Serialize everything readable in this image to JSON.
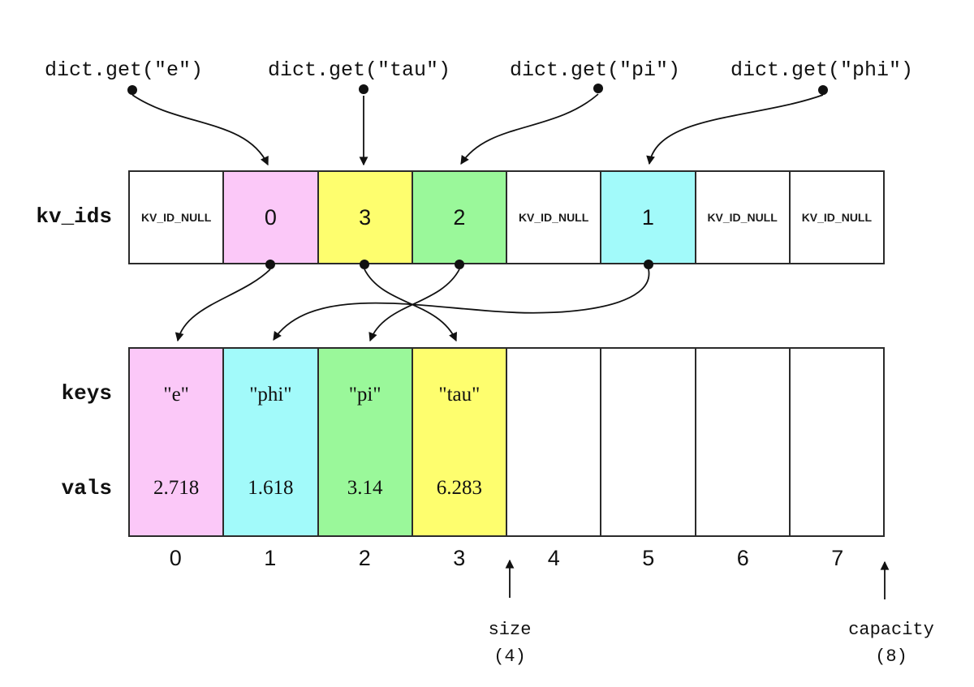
{
  "palette": {
    "pink": "#FBC8F8",
    "yellow": "#FEFE6E",
    "green": "#9AF89A",
    "cyan": "#A2FAFA",
    "white": "#FFFFFF"
  },
  "line_color": "#111111",
  "calls": [
    {
      "label": "dict.get(\"e\")"
    },
    {
      "label": "dict.get(\"tau\")"
    },
    {
      "label": "dict.get(\"pi\")"
    },
    {
      "label": "dict.get(\"phi\")"
    }
  ],
  "kv_ids": {
    "label": "kv_ids",
    "cells": [
      {
        "text": "KV_ID_NULL",
        "color": "white",
        "type": "null"
      },
      {
        "text": "0",
        "color": "pink",
        "type": "id"
      },
      {
        "text": "3",
        "color": "yellow",
        "type": "id"
      },
      {
        "text": "2",
        "color": "green",
        "type": "id"
      },
      {
        "text": "KV_ID_NULL",
        "color": "white",
        "type": "null"
      },
      {
        "text": "1",
        "color": "cyan",
        "type": "id"
      },
      {
        "text": "KV_ID_NULL",
        "color": "white",
        "type": "null"
      },
      {
        "text": "KV_ID_NULL",
        "color": "white",
        "type": "null"
      }
    ]
  },
  "keys": {
    "label": "keys",
    "cells": [
      {
        "text": "\"e\"",
        "color": "pink"
      },
      {
        "text": "\"phi\"",
        "color": "cyan"
      },
      {
        "text": "\"pi\"",
        "color": "green"
      },
      {
        "text": "\"tau\"",
        "color": "yellow"
      },
      {
        "text": "",
        "color": "white"
      },
      {
        "text": "",
        "color": "white"
      },
      {
        "text": "",
        "color": "white"
      },
      {
        "text": "",
        "color": "white"
      }
    ]
  },
  "vals": {
    "label": "vals",
    "cells": [
      {
        "text": "2.718",
        "color": "pink"
      },
      {
        "text": "1.618",
        "color": "cyan"
      },
      {
        "text": "3.14",
        "color": "green"
      },
      {
        "text": "6.283",
        "color": "yellow"
      },
      {
        "text": "",
        "color": "white"
      },
      {
        "text": "",
        "color": "white"
      },
      {
        "text": "",
        "color": "white"
      },
      {
        "text": "",
        "color": "white"
      }
    ]
  },
  "indices": [
    "0",
    "1",
    "2",
    "3",
    "4",
    "5",
    "6",
    "7"
  ],
  "size_annotation": {
    "label": "size",
    "value": "(4)"
  },
  "capacity_annotation": {
    "label": "capacity",
    "value": "(8)"
  }
}
